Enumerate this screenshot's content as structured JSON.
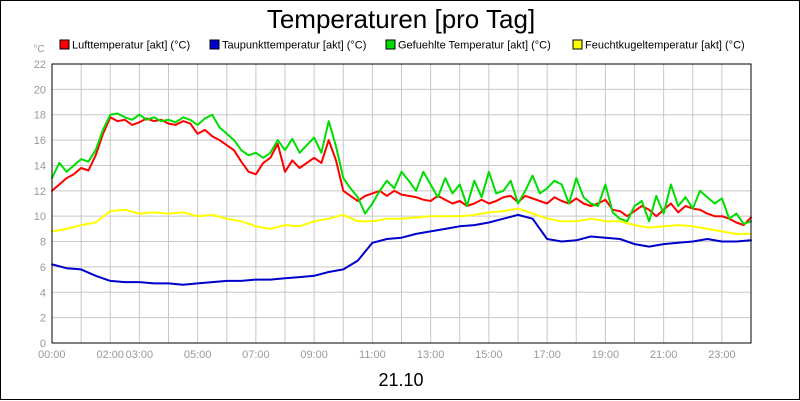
{
  "chart_data": {
    "type": "line",
    "title": "Temperaturen [pro Tag]",
    "ylabel": "°C",
    "xlabel": "21.10",
    "ylim": [
      0,
      22
    ],
    "xlim": [
      0,
      24
    ],
    "yticks": [
      "0",
      "2",
      "4",
      "6",
      "8",
      "10",
      "12",
      "14",
      "16",
      "18",
      "20",
      "22"
    ],
    "xticks": [
      {
        "pos": 0,
        "label": "00:00"
      },
      {
        "pos": 2,
        "label": "02:00"
      },
      {
        "pos": 3,
        "label": "03:00"
      },
      {
        "pos": 5,
        "label": "05:00"
      },
      {
        "pos": 7,
        "label": "07:00"
      },
      {
        "pos": 9,
        "label": "09:00"
      },
      {
        "pos": 11,
        "label": "11:00"
      },
      {
        "pos": 13,
        "label": "13:00"
      },
      {
        "pos": 15,
        "label": "15:00"
      },
      {
        "pos": 17,
        "label": "17:00"
      },
      {
        "pos": 19,
        "label": "19:00"
      },
      {
        "pos": 21,
        "label": "21:00"
      },
      {
        "pos": 23,
        "label": "23:00"
      }
    ],
    "grid": true,
    "legend_position": "top",
    "series": [
      {
        "name": "Lufttemperatur [akt] (°C)",
        "color": "#ff0000",
        "x": [
          0,
          0.25,
          0.5,
          0.75,
          1,
          1.25,
          1.5,
          1.75,
          2,
          2.25,
          2.5,
          2.75,
          3,
          3.25,
          3.5,
          3.75,
          4,
          4.25,
          4.5,
          4.75,
          5,
          5.25,
          5.5,
          5.75,
          6,
          6.25,
          6.5,
          6.75,
          7,
          7.25,
          7.5,
          7.75,
          8,
          8.25,
          8.5,
          8.75,
          9,
          9.25,
          9.5,
          9.75,
          10,
          10.25,
          10.5,
          10.75,
          11,
          11.25,
          11.5,
          11.75,
          12,
          12.25,
          12.5,
          12.75,
          13,
          13.25,
          13.5,
          13.75,
          14,
          14.25,
          14.5,
          14.75,
          15,
          15.25,
          15.5,
          15.75,
          16,
          16.25,
          16.5,
          16.75,
          17,
          17.25,
          17.5,
          17.75,
          18,
          18.25,
          18.5,
          18.75,
          19,
          19.25,
          19.5,
          19.75,
          20,
          20.25,
          20.5,
          20.75,
          21,
          21.25,
          21.5,
          21.75,
          22,
          22.25,
          22.5,
          22.75,
          23,
          23.25,
          23.5,
          23.75,
          24
        ],
        "values": [
          12.0,
          12.5,
          13.0,
          13.3,
          13.8,
          13.6,
          14.8,
          16.5,
          17.8,
          17.5,
          17.6,
          17.2,
          17.4,
          17.7,
          17.5,
          17.6,
          17.3,
          17.2,
          17.5,
          17.3,
          16.5,
          16.8,
          16.3,
          16.0,
          15.6,
          15.2,
          14.3,
          13.5,
          13.3,
          14.2,
          14.6,
          15.7,
          13.5,
          14.4,
          13.8,
          14.2,
          14.6,
          14.2,
          16.0,
          14.4,
          12.0,
          11.6,
          11.2,
          11.6,
          11.8,
          12.0,
          11.6,
          12.0,
          11.7,
          11.6,
          11.5,
          11.3,
          11.2,
          11.6,
          11.3,
          11.0,
          11.2,
          10.8,
          11.0,
          11.3,
          11.0,
          11.2,
          11.5,
          11.6,
          11.1,
          11.6,
          11.4,
          11.2,
          11.0,
          11.5,
          11.2,
          11.0,
          11.4,
          11.0,
          10.8,
          11.0,
          11.3,
          10.5,
          10.4,
          10.0,
          10.4,
          10.8,
          10.5,
          10.0,
          10.5,
          11.0,
          10.3,
          10.8,
          10.6,
          10.5,
          10.2,
          10.0,
          10.0,
          9.8,
          9.5,
          9.3,
          9.9
        ]
      },
      {
        "name": "Taupunkttemperatur [akt] (°C)",
        "color": "#0000cc",
        "x": [
          0,
          0.5,
          1,
          1.5,
          2,
          2.5,
          3,
          3.5,
          4,
          4.5,
          5,
          5.5,
          6,
          6.5,
          7,
          7.5,
          8,
          8.5,
          9,
          9.5,
          10,
          10.5,
          11,
          11.5,
          12,
          12.5,
          13,
          13.5,
          14,
          14.5,
          15,
          15.5,
          16,
          16.5,
          17,
          17.5,
          18,
          18.5,
          19,
          19.5,
          20,
          20.5,
          21,
          21.5,
          22,
          22.5,
          23,
          23.5,
          24
        ],
        "values": [
          6.2,
          5.9,
          5.8,
          5.3,
          4.9,
          4.8,
          4.8,
          4.7,
          4.7,
          4.6,
          4.7,
          4.8,
          4.9,
          4.9,
          5.0,
          5.0,
          5.1,
          5.2,
          5.3,
          5.6,
          5.8,
          6.5,
          7.9,
          8.2,
          8.3,
          8.6,
          8.8,
          9.0,
          9.2,
          9.3,
          9.5,
          9.8,
          10.1,
          9.8,
          8.2,
          8.0,
          8.1,
          8.4,
          8.3,
          8.2,
          7.8,
          7.6,
          7.8,
          7.9,
          8.0,
          8.2,
          8.0,
          8.0,
          8.1
        ]
      },
      {
        "name": "Gefuehlte Temperatur [akt] (°C)",
        "color": "#00dd00",
        "x": [
          0,
          0.25,
          0.5,
          0.75,
          1,
          1.25,
          1.5,
          1.75,
          2,
          2.25,
          2.5,
          2.75,
          3,
          3.25,
          3.5,
          3.75,
          4,
          4.25,
          4.5,
          4.75,
          5,
          5.25,
          5.5,
          5.75,
          6,
          6.25,
          6.5,
          6.75,
          7,
          7.25,
          7.5,
          7.75,
          8,
          8.25,
          8.5,
          8.75,
          9,
          9.25,
          9.5,
          9.75,
          10,
          10.25,
          10.5,
          10.75,
          11,
          11.25,
          11.5,
          11.75,
          12,
          12.25,
          12.5,
          12.75,
          13,
          13.25,
          13.5,
          13.75,
          14,
          14.25,
          14.5,
          14.75,
          15,
          15.25,
          15.5,
          15.75,
          16,
          16.25,
          16.5,
          16.75,
          17,
          17.25,
          17.5,
          17.75,
          18,
          18.25,
          18.5,
          18.75,
          19,
          19.25,
          19.5,
          19.75,
          20,
          20.25,
          20.5,
          20.75,
          21,
          21.25,
          21.5,
          21.75,
          22,
          22.25,
          22.5,
          22.75,
          23,
          23.25,
          23.5,
          23.75,
          24
        ],
        "values": [
          13.0,
          14.2,
          13.5,
          14.0,
          14.5,
          14.3,
          15.2,
          16.8,
          18.0,
          18.1,
          17.8,
          17.6,
          18.0,
          17.6,
          17.8,
          17.5,
          17.6,
          17.4,
          17.8,
          17.6,
          17.2,
          17.7,
          18.0,
          17.0,
          16.5,
          16.0,
          15.2,
          14.8,
          15.0,
          14.6,
          15.0,
          16.0,
          15.2,
          16.1,
          15.0,
          15.6,
          16.2,
          15.0,
          17.5,
          15.5,
          13.0,
          12.2,
          11.5,
          10.2,
          11.0,
          12.0,
          12.8,
          12.2,
          13.5,
          12.8,
          12.0,
          13.5,
          12.5,
          11.5,
          13.0,
          11.8,
          12.5,
          10.8,
          12.8,
          11.5,
          13.5,
          11.8,
          12.0,
          12.8,
          11.0,
          12.0,
          13.2,
          11.8,
          12.2,
          12.8,
          12.5,
          11.0,
          13.0,
          11.5,
          11.0,
          10.8,
          12.5,
          10.3,
          9.8,
          9.6,
          10.8,
          11.2,
          9.6,
          11.6,
          10.2,
          12.5,
          10.8,
          11.5,
          10.6,
          12.0,
          11.5,
          11.0,
          11.4,
          9.8,
          10.2,
          9.4,
          9.6
        ]
      },
      {
        "name": "Feuchtkugeltemperatur [akt] (°C)",
        "color": "#ffff00",
        "x": [
          0,
          0.5,
          1,
          1.5,
          2,
          2.5,
          3,
          3.5,
          4,
          4.5,
          5,
          5.5,
          6,
          6.5,
          7,
          7.5,
          8,
          8.5,
          9,
          9.5,
          10,
          10.5,
          11,
          11.5,
          12,
          12.5,
          13,
          13.5,
          14,
          14.5,
          15,
          15.5,
          16,
          16.5,
          17,
          17.5,
          18,
          18.5,
          19,
          19.5,
          20,
          20.5,
          21,
          21.5,
          22,
          22.5,
          23,
          23.5,
          24
        ],
        "values": [
          8.8,
          9.0,
          9.3,
          9.5,
          10.4,
          10.5,
          10.2,
          10.3,
          10.2,
          10.3,
          10.0,
          10.1,
          9.8,
          9.6,
          9.2,
          9.0,
          9.3,
          9.2,
          9.6,
          9.8,
          10.1,
          9.6,
          9.6,
          9.8,
          9.8,
          9.9,
          10.0,
          10.0,
          10.0,
          10.1,
          10.3,
          10.4,
          10.6,
          10.2,
          9.8,
          9.6,
          9.6,
          9.8,
          9.6,
          9.6,
          9.3,
          9.1,
          9.2,
          9.3,
          9.2,
          9.0,
          8.8,
          8.6,
          8.6
        ]
      }
    ]
  }
}
